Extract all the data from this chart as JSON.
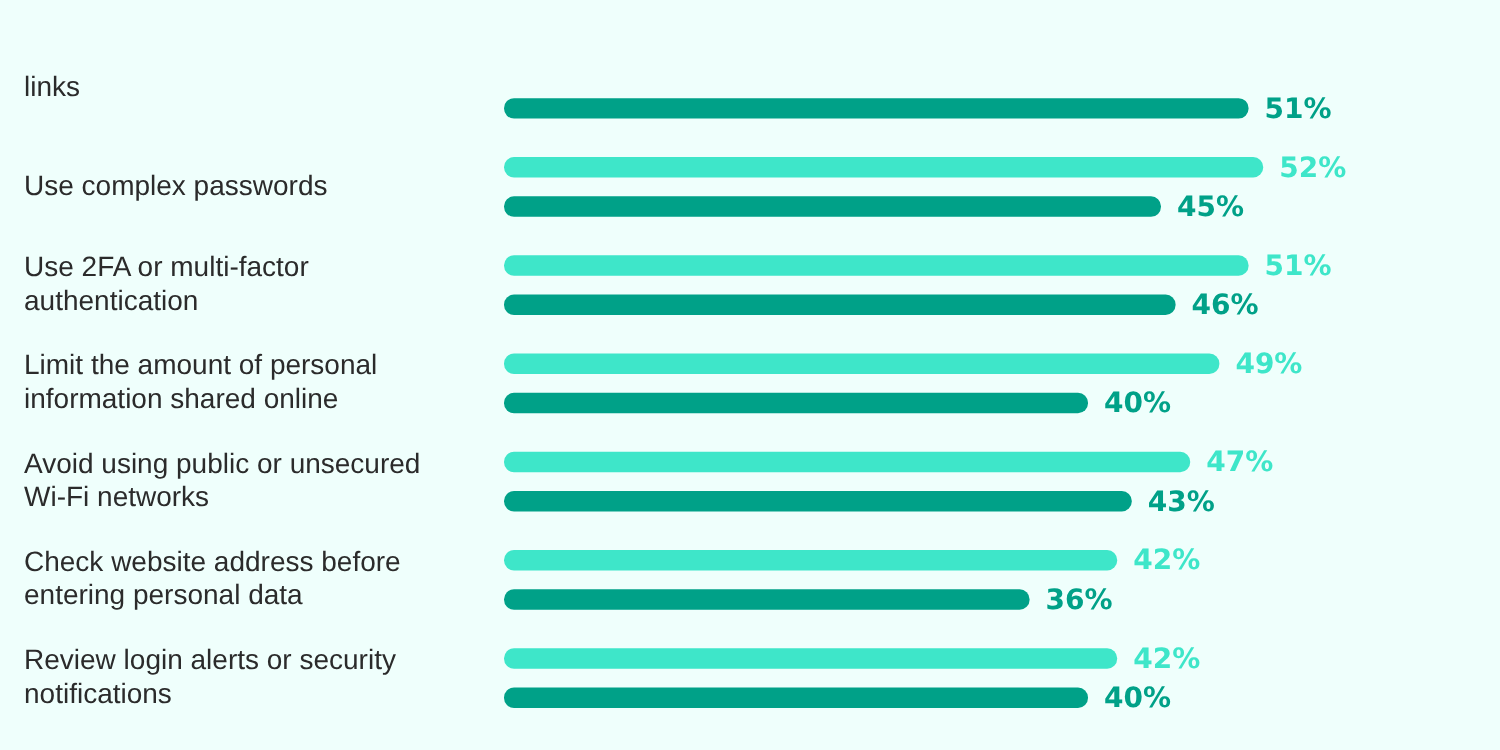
{
  "chart_data": {
    "type": "bar",
    "orientation": "horizontal",
    "categories": [
      "links",
      "Use complex passwords",
      "Use 2FA or multi-factor authentication",
      "Limit the amount of personal information shared online",
      "Avoid using public or unsecured Wi-Fi networks",
      "Check website address before entering personal data",
      "Review login alerts or security notifications"
    ],
    "series": [
      {
        "color": "#3ee6c9",
        "values": [
          null,
          52,
          51,
          49,
          47,
          42,
          42
        ],
        "value_labels": [
          null,
          "52%",
          "51%",
          "49%",
          "47%",
          "42%",
          "42%"
        ]
      },
      {
        "color": "#00a188",
        "values": [
          51,
          45,
          46,
          40,
          43,
          36,
          40
        ],
        "value_labels": [
          "51%",
          "45%",
          "46%",
          "40%",
          "43%",
          "36%",
          "40%"
        ]
      }
    ],
    "grid": false,
    "legend": false
  }
}
